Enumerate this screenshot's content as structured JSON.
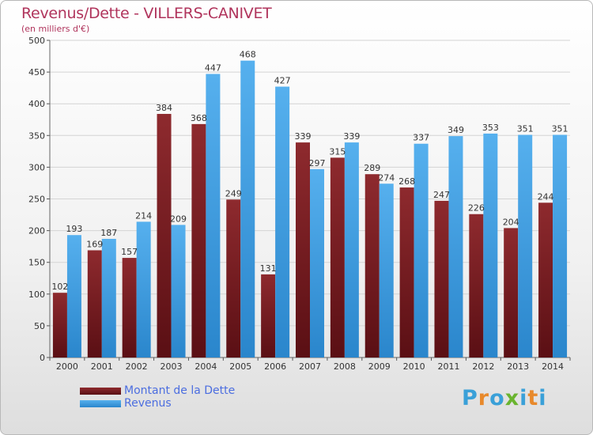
{
  "title": "Revenus/Dette - VILLERS-CANIVET",
  "subtitle": "(en milliers d'€)",
  "chart_data": {
    "type": "bar",
    "categories": [
      "2000",
      "2001",
      "2002",
      "2003",
      "2004",
      "2005",
      "2006",
      "2007",
      "2008",
      "2009",
      "2010",
      "2011",
      "2012",
      "2013",
      "2014"
    ],
    "series": [
      {
        "name": "Montant de la Dette",
        "color": "#7f1f23",
        "values": [
          102,
          169,
          157,
          384,
          368,
          249,
          131,
          339,
          315,
          289,
          268,
          247,
          226,
          204,
          244
        ]
      },
      {
        "name": "Revenus",
        "color": "#4ea6e8",
        "values": [
          193,
          187,
          214,
          209,
          447,
          468,
          427,
          297,
          339,
          274,
          337,
          349,
          353,
          351,
          351
        ]
      }
    ],
    "ylim": [
      0,
      500
    ],
    "yticks": [
      0,
      50,
      100,
      150,
      200,
      250,
      300,
      350,
      400,
      450,
      500
    ],
    "grid": true,
    "xlabel": "",
    "ylabel": ""
  },
  "legend": [
    {
      "label": "Montant de la Dette",
      "color": "#5a0f14"
    },
    {
      "label": "Revenus",
      "color": "#4ea6e8"
    }
  ],
  "logo": {
    "letters": [
      "P",
      "r",
      "o",
      "x",
      "i",
      "t",
      "i"
    ],
    "colors": [
      "#3aa0d8",
      "#e8892b",
      "#3aa0d8",
      "#6ab42f",
      "#3aa0d8",
      "#e8892b",
      "#3aa0d8"
    ]
  }
}
